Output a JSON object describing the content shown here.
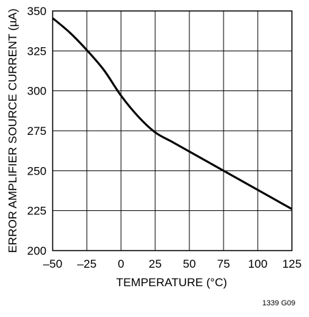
{
  "chart_data": {
    "type": "line",
    "title": "",
    "xlabel": "TEMPERATURE (°C)",
    "ylabel": "ERROR AMPLIFIER SOURCE CURRENT (µA)",
    "xlim": [
      -50,
      125
    ],
    "ylim": [
      200,
      350
    ],
    "xticks": [
      -50,
      -25,
      0,
      25,
      50,
      75,
      100,
      125
    ],
    "yticks": [
      200,
      225,
      250,
      275,
      300,
      325,
      350
    ],
    "xtick_labels": [
      "–50",
      "–25",
      "0",
      "25",
      "50",
      "75",
      "100",
      "125"
    ],
    "ytick_labels": [
      "200",
      "225",
      "250",
      "275",
      "300",
      "325",
      "350"
    ],
    "grid": true,
    "series": [
      {
        "x": [
          -50,
          -37.5,
          -25,
          -12.5,
          0,
          12.5,
          25,
          37.5,
          50,
          62.5,
          75,
          87.5,
          100,
          112.5,
          125
        ],
        "y": [
          345.5,
          336.5,
          325.5,
          313,
          297,
          284,
          274,
          268,
          262,
          256,
          250,
          244,
          238,
          232,
          226
        ]
      }
    ],
    "annotations": [
      "1339 G09"
    ]
  }
}
